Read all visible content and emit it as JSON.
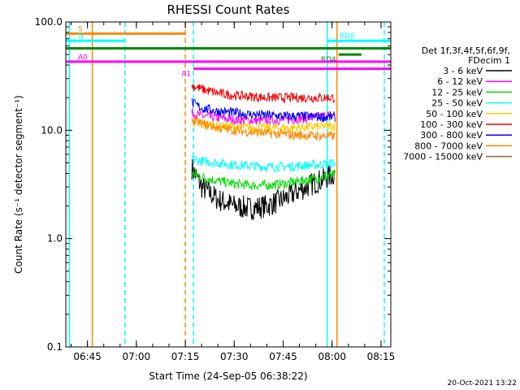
{
  "chart_data": {
    "type": "line",
    "title": "RHESSI Count Rates",
    "xlabel": "Start Time (24-Sep-05 06:38:22)",
    "ylabel": "Count Rate (s⁻¹ detector segment⁻¹)",
    "y_scale": "log",
    "ylim": [
      0.1,
      100.0
    ],
    "y_ticks": [
      "0.1",
      "1.0",
      "10.0",
      "100.0"
    ],
    "xlim": [
      "06:38:22",
      "08:18:00"
    ],
    "x_ticks": [
      "06:45",
      "07:00",
      "07:15",
      "07:30",
      "07:45",
      "08:00",
      "08:15"
    ],
    "legend_title": [
      "Det 1f,3f,4f,5f,6f,9f,",
      "FDecim 1"
    ],
    "legend_placement": "right",
    "series": [
      {
        "name": "3 - 6 keV",
        "color": "#000000",
        "t": [
          "07:17",
          "07:20",
          "07:25",
          "07:30",
          "07:35",
          "07:40",
          "07:45",
          "07:50",
          "07:55",
          "08:01"
        ],
        "values": [
          4.5,
          3.0,
          2.3,
          2.0,
          1.9,
          2.0,
          2.3,
          2.8,
          3.3,
          4.0
        ]
      },
      {
        "name": "6 - 12 keV",
        "color": "#ff00ff",
        "t": [
          "07:17",
          "07:20",
          "07:25",
          "07:30",
          "07:35",
          "07:40",
          "07:45",
          "07:50",
          "07:55",
          "08:01"
        ],
        "values": [
          14.5,
          13.5,
          13.0,
          12.5,
          12.3,
          12.3,
          12.5,
          12.8,
          13.2,
          14.0
        ]
      },
      {
        "name": "12 - 25 keV",
        "color": "#00dd00",
        "t": [
          "07:17",
          "07:20",
          "07:25",
          "07:30",
          "07:35",
          "07:40",
          "07:45",
          "07:50",
          "07:55",
          "08:01"
        ],
        "values": [
          4.0,
          3.7,
          3.4,
          3.2,
          3.1,
          3.1,
          3.2,
          3.4,
          3.6,
          3.9
        ]
      },
      {
        "name": "25 - 50 keV",
        "color": "#00ffff",
        "t": [
          "07:17",
          "07:20",
          "07:25",
          "07:30",
          "07:35",
          "07:40",
          "07:45",
          "07:50",
          "07:55",
          "08:01"
        ],
        "values": [
          5.5,
          5.2,
          5.0,
          4.8,
          4.7,
          4.6,
          4.6,
          4.7,
          4.8,
          5.0
        ]
      },
      {
        "name": "50 - 100 keV",
        "color": "#ffcc00",
        "t": [
          "07:17",
          "07:20",
          "07:25",
          "07:30",
          "07:35",
          "07:40",
          "07:45",
          "07:50",
          "07:55",
          "08:01"
        ],
        "values": [
          12.0,
          11.5,
          11.0,
          10.8,
          10.6,
          10.5,
          10.5,
          10.6,
          10.8,
          11.0
        ]
      },
      {
        "name": "100 - 300 keV",
        "color": "#ee0000",
        "t": [
          "07:17",
          "07:20",
          "07:25",
          "07:30",
          "07:35",
          "07:40",
          "07:45",
          "07:50",
          "07:55",
          "08:01"
        ],
        "values": [
          26,
          24,
          22,
          21,
          20.5,
          20,
          20,
          20,
          20,
          20
        ]
      },
      {
        "name": "300 - 800 keV",
        "color": "#0000ee",
        "t": [
          "07:17",
          "07:20",
          "07:25",
          "07:30",
          "07:35",
          "07:40",
          "07:45",
          "07:50",
          "07:55",
          "08:01"
        ],
        "values": [
          18,
          16,
          15,
          14.5,
          14,
          13.8,
          13.5,
          13.5,
          13.3,
          13.2
        ]
      },
      {
        "name": "800 - 7000 keV",
        "color": "#ff8800",
        "t": [
          "07:17",
          "07:20",
          "07:25",
          "07:30",
          "07:35",
          "07:40",
          "07:45",
          "07:50",
          "07:55",
          "08:01"
        ],
        "values": [
          12.5,
          11.5,
          10.5,
          10.0,
          9.6,
          9.4,
          9.2,
          9.0,
          8.9,
          8.8
        ]
      },
      {
        "name": "7000 - 15000 keV",
        "color": "#996633",
        "t": [],
        "values": []
      }
    ],
    "annotations": [
      {
        "label": "S",
        "color": "#ff8800",
        "t_start": "06:38:22",
        "t_end": "07:15:00",
        "y": 78
      },
      {
        "label": "N",
        "color": "#00ffff",
        "t_start": "06:38:22",
        "t_end": "06:56:30",
        "y": 67
      },
      {
        "label": "RD0",
        "color": "#00ffff",
        "t_start": "07:58:30",
        "t_end": "08:18:00",
        "y": 67
      },
      {
        "label": "RD4",
        "color": "#008800",
        "t_start": "08:02:00",
        "t_end": "08:09:00",
        "y": 50
      },
      {
        "label": "",
        "color": "#008800",
        "t_start": "06:38:22",
        "t_end": "08:18:00",
        "y": 57
      },
      {
        "label": "A0",
        "color": "#ff00ff",
        "t_start": "06:38:22",
        "t_end": "08:18:00",
        "y": 43
      },
      {
        "label": "A1",
        "color": "#ff00ff",
        "t_start": "07:17:30",
        "t_end": "08:18:00",
        "y": 37
      }
    ],
    "vertical_markers": [
      {
        "t": "06:39:30",
        "color": "#00ffff",
        "style": "solid"
      },
      {
        "t": "06:46:30",
        "color": "#ff8800",
        "style": "solid"
      },
      {
        "t": "06:56:30",
        "color": "#00ffff",
        "style": "dashed"
      },
      {
        "t": "07:15:00",
        "color": "#ff8800",
        "style": "dashed"
      },
      {
        "t": "07:17:30",
        "color": "#00ffff",
        "style": "dashed"
      },
      {
        "t": "07:58:30",
        "color": "#00ffff",
        "style": "solid"
      },
      {
        "t": "08:01:30",
        "color": "#ff8800",
        "style": "solid"
      },
      {
        "t": "08:16:00",
        "color": "#00ffff",
        "style": "dashed"
      }
    ]
  },
  "footer_date": "20-Oct-2021 13:22"
}
